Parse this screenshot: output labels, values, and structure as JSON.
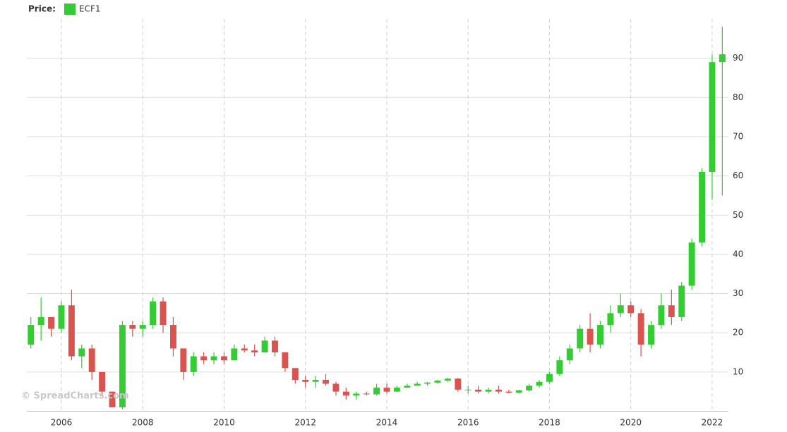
{
  "chart_data": {
    "type": "candlestick",
    "legend_title": "Price:",
    "name": "ECF1",
    "color": "#33cc33",
    "down_color": "#d9534f",
    "watermark": "© SpreadCharts.com",
    "x": [
      2005.25,
      2005.5,
      2005.75,
      2006.0,
      2006.25,
      2006.5,
      2006.75,
      2007.0,
      2007.25,
      2007.5,
      2007.75,
      2008.0,
      2008.25,
      2008.5,
      2008.75,
      2009.0,
      2009.25,
      2009.5,
      2009.75,
      2010.0,
      2010.25,
      2010.5,
      2010.75,
      2011.0,
      2011.25,
      2011.5,
      2011.75,
      2012.0,
      2012.25,
      2012.5,
      2012.75,
      2013.0,
      2013.25,
      2013.5,
      2013.75,
      2014.0,
      2014.25,
      2014.5,
      2014.75,
      2015.0,
      2015.25,
      2015.5,
      2015.75,
      2016.0,
      2016.25,
      2016.5,
      2016.75,
      2017.0,
      2017.25,
      2017.5,
      2017.75,
      2018.0,
      2018.25,
      2018.5,
      2018.75,
      2019.0,
      2019.25,
      2019.5,
      2019.75,
      2020.0,
      2020.25,
      2020.5,
      2020.75,
      2021.0,
      2021.25,
      2021.5,
      2021.75,
      2022.0,
      2022.25
    ],
    "open": [
      17,
      22,
      24,
      21,
      27,
      14,
      16,
      10,
      5,
      1,
      22,
      21,
      22,
      28,
      22,
      16,
      10,
      14,
      13,
      14,
      13,
      16,
      15.5,
      15,
      18,
      15,
      11,
      8,
      7.5,
      8,
      7,
      5,
      4,
      4.5,
      4.3,
      6,
      5,
      6,
      6.5,
      7,
      7.3,
      7.8,
      8.3,
      5.5,
      5.5,
      5,
      5.5,
      5,
      4.7,
      5.3,
      6.5,
      7.5,
      9.5,
      13,
      16,
      21,
      17,
      22,
      25,
      27,
      25,
      17,
      22,
      27,
      24,
      32,
      43,
      61,
      89
    ],
    "high": [
      24,
      29,
      24,
      28,
      31,
      17,
      17,
      10,
      5,
      23,
      23,
      23,
      29,
      29,
      24,
      16,
      15,
      15,
      15,
      15,
      17,
      17,
      17,
      19,
      19,
      15,
      11,
      9,
      9,
      9.5,
      7.5,
      6,
      5,
      5,
      7,
      7,
      6.5,
      7,
      7.5,
      7.5,
      8,
      8.5,
      8.5,
      6.5,
      6.5,
      6,
      6.5,
      5.5,
      5.5,
      7,
      8,
      10,
      14,
      17,
      22,
      25,
      23,
      27,
      30,
      28,
      26,
      23,
      30,
      31,
      33,
      44,
      62,
      91,
      98
    ],
    "low": [
      16,
      18,
      19,
      20,
      13,
      11,
      8,
      4,
      1,
      0.5,
      19,
      19,
      21,
      20,
      14,
      8,
      9,
      12,
      12,
      12,
      13,
      15,
      14,
      15,
      14,
      10,
      7,
      6,
      6,
      6.5,
      4,
      3,
      3,
      4,
      4,
      4.5,
      5,
      6,
      6.5,
      6.5,
      7,
      7.5,
      5,
      4.5,
      4.5,
      4.5,
      4.5,
      4.5,
      4.5,
      5,
      6,
      7,
      9,
      12,
      15,
      15,
      16,
      20,
      24,
      24,
      14,
      16,
      21,
      22,
      23,
      31,
      42,
      54,
      55
    ],
    "close": [
      22,
      24,
      21,
      27,
      14,
      16,
      10,
      5,
      1,
      22,
      21,
      22,
      28,
      22,
      16,
      10,
      14,
      13,
      14,
      13,
      16,
      15.5,
      15,
      18,
      15,
      11,
      8,
      7.5,
      8,
      7,
      5,
      4,
      4.5,
      4.3,
      6,
      5,
      6,
      6.5,
      7,
      7.3,
      7.8,
      8.3,
      5.5,
      5.5,
      5,
      5.5,
      5,
      4.7,
      5.3,
      6.5,
      7.5,
      9.5,
      13,
      16,
      21,
      17,
      22,
      25,
      27,
      25,
      17,
      22,
      27,
      24,
      32,
      43,
      61,
      89,
      91
    ],
    "xlim": [
      2005.15,
      2022.4
    ],
    "xticks": [
      2006,
      2008,
      2010,
      2012,
      2014,
      2016,
      2018,
      2020,
      2022
    ],
    "ylim": [
      0,
      100
    ],
    "yticks": [
      10,
      20,
      30,
      40,
      50,
      60,
      70,
      80,
      90
    ],
    "grid": true
  }
}
